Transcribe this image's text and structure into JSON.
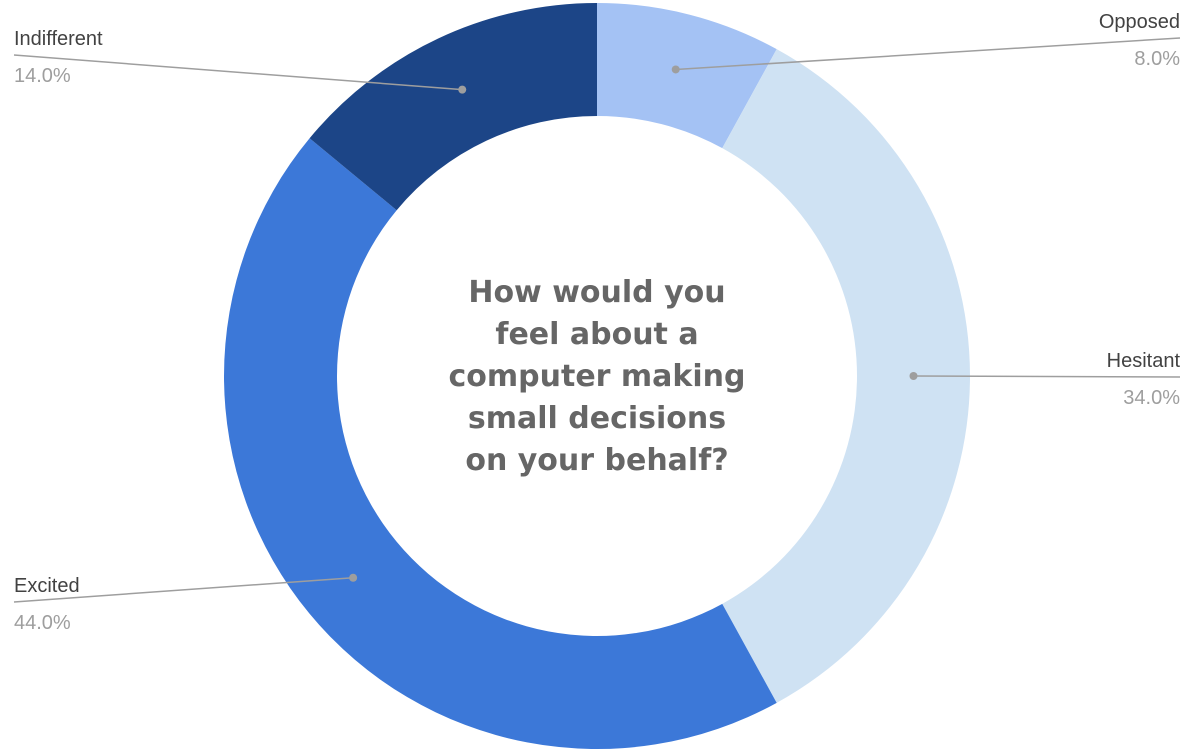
{
  "chart_data": {
    "type": "pie",
    "donut": true,
    "title": "How would you feel about a computer making small decisions on your behalf?",
    "title_lines": [
      "How would you",
      "feel about a",
      "computer making",
      "small decisions",
      "on your behalf?"
    ],
    "categories": [
      "Opposed",
      "Hesitant",
      "Excited",
      "Indifferent"
    ],
    "values": [
      8.0,
      34.0,
      44.0,
      14.0
    ],
    "value_labels": [
      "8.0%",
      "34.0%",
      "44.0%",
      "14.0%"
    ],
    "colors": [
      "#a4c2f4",
      "#cfe2f3",
      "#3c78d8",
      "#1c4587"
    ],
    "legend": "none",
    "data_labels": "outside with leader lines"
  }
}
